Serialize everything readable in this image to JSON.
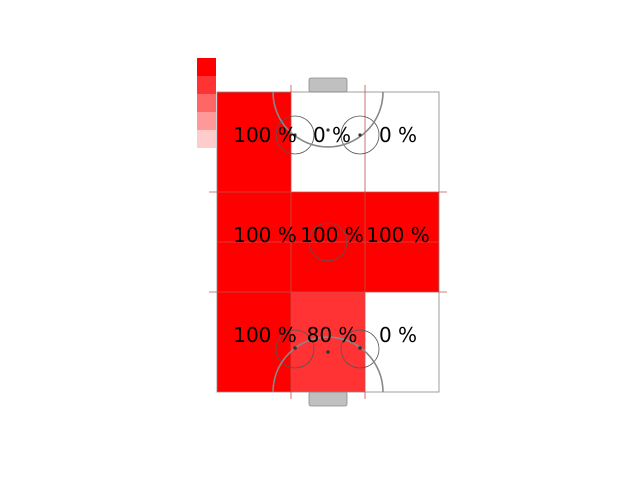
{
  "chart_data": {
    "type": "heatmap",
    "title": "",
    "rows": 3,
    "cols": 3,
    "cells": [
      {
        "row": 0,
        "col": 0,
        "value": 100,
        "label": "100 %"
      },
      {
        "row": 0,
        "col": 1,
        "value": 0,
        "label": "0 %"
      },
      {
        "row": 0,
        "col": 2,
        "value": 0,
        "label": "0 %"
      },
      {
        "row": 1,
        "col": 0,
        "value": 100,
        "label": "100 %"
      },
      {
        "row": 1,
        "col": 1,
        "value": 100,
        "label": "100 %"
      },
      {
        "row": 1,
        "col": 2,
        "value": 100,
        "label": "100 %"
      },
      {
        "row": 2,
        "col": 0,
        "value": 100,
        "label": "100 %"
      },
      {
        "row": 2,
        "col": 1,
        "value": 80,
        "label": "80 %"
      },
      {
        "row": 2,
        "col": 2,
        "value": 0,
        "label": "0 %"
      }
    ],
    "value_range": [
      0,
      100
    ],
    "legend_levels": [
      100,
      80,
      60,
      40,
      20
    ],
    "legend_placement": "top-left",
    "background": "rink",
    "colors": {
      "max": "#ff0000",
      "min": "#ffffff",
      "rink_lines": "#c0504d",
      "goal": "#c0c0c0",
      "border": "#888888"
    }
  }
}
